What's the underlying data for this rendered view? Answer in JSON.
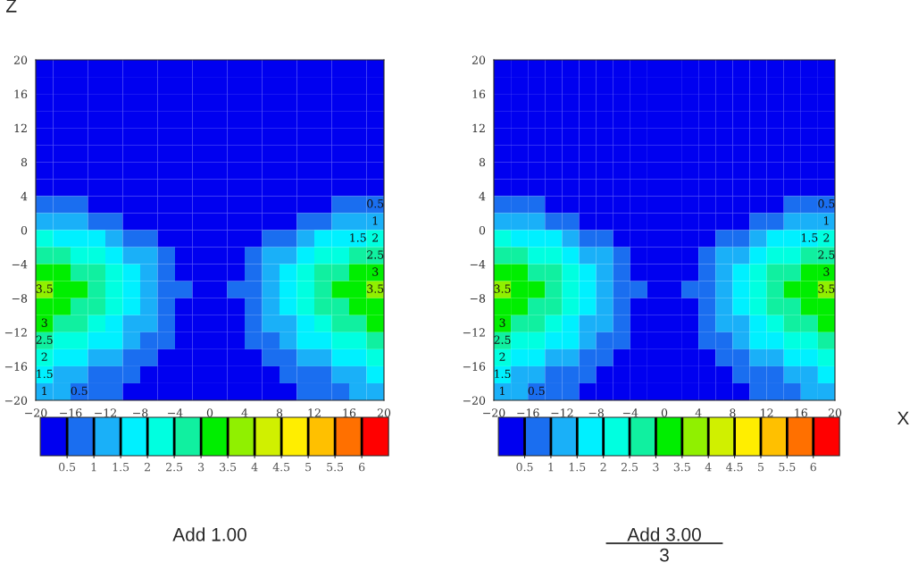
{
  "chart_data": [
    {
      "type": "heatmap",
      "title": "Add 1.00",
      "ylabel": "Z",
      "x": [
        -19,
        -17,
        -15,
        -13,
        -11,
        -9,
        -7,
        -5,
        -3,
        -1,
        1,
        3,
        5,
        7,
        9,
        11,
        13,
        15,
        17,
        19
      ],
      "y": [
        19,
        17,
        15,
        13,
        11,
        9,
        7,
        5,
        3,
        1,
        -1,
        -3,
        -5,
        -7,
        -9,
        -11,
        -13,
        -15,
        -17,
        -19
      ],
      "xlim": [
        -20,
        20
      ],
      "xticks": [
        -20,
        -16,
        -12,
        -8,
        -4,
        0,
        4,
        8,
        12,
        16,
        20
      ],
      "ylim": [
        -20,
        20
      ],
      "yticks": [
        -20,
        -16,
        -12,
        -8,
        -4,
        0,
        4,
        8,
        12,
        16,
        20
      ],
      "clim": [
        0,
        6.5
      ],
      "cticks": [
        0.5,
        1,
        1.5,
        2,
        2.5,
        3,
        3.5,
        4,
        4.5,
        5,
        5.5,
        6
      ],
      "colors": [
        "#0000f0",
        "#1a6ef0",
        "#1ab0f8",
        "#00f0ff",
        "#00ffe0",
        "#10f0a0",
        "#00ee00",
        "#90f000",
        "#d0f000",
        "#ffee00",
        "#ffc000",
        "#ff7000",
        "#ff0000"
      ],
      "cells": [
        [
          0,
          0,
          0,
          0,
          0,
          0,
          0,
          0,
          0,
          0,
          0,
          0,
          0,
          0,
          0,
          0,
          0,
          0,
          0,
          0
        ],
        [
          0,
          0,
          0,
          0,
          0,
          0,
          0,
          0,
          0,
          0,
          0,
          0,
          0,
          0,
          0,
          0,
          0,
          0,
          0,
          0
        ],
        [
          0,
          0,
          0,
          0,
          0,
          0,
          0,
          0,
          0,
          0,
          0,
          0,
          0,
          0,
          0,
          0,
          0,
          0,
          0,
          0
        ],
        [
          0,
          0,
          0,
          0,
          0,
          0,
          0,
          0,
          0,
          0,
          0,
          0,
          0,
          0,
          0,
          0,
          0,
          0,
          0,
          0
        ],
        [
          0,
          0,
          0,
          0,
          0,
          0,
          0,
          0,
          0,
          0,
          0,
          0,
          0,
          0,
          0,
          0,
          0,
          0,
          0,
          0
        ],
        [
          0,
          0,
          0,
          0,
          0,
          0,
          0,
          0,
          0,
          0,
          0,
          0,
          0,
          0,
          0,
          0,
          0,
          0,
          0,
          0
        ],
        [
          0,
          0,
          0,
          0,
          0,
          0,
          0,
          0,
          0,
          0,
          0,
          0,
          0,
          0,
          0,
          0,
          0,
          0,
          0,
          0
        ],
        [
          0,
          0,
          0,
          0,
          0,
          0,
          0,
          0,
          0,
          0,
          0,
          0,
          0,
          0,
          0,
          0,
          0,
          0,
          0,
          0
        ],
        [
          0.5,
          0.5,
          0.5,
          0,
          0,
          0,
          0,
          0,
          0,
          0,
          0,
          0,
          0,
          0,
          0,
          0,
          0,
          0.5,
          0.5,
          0.5
        ],
        [
          1,
          1,
          1,
          0.5,
          0.5,
          0,
          0,
          0,
          0,
          0,
          0,
          0,
          0,
          0,
          0,
          0.5,
          0.5,
          1,
          1,
          1
        ],
        [
          2,
          1.5,
          1.5,
          1.5,
          1,
          0.5,
          0.5,
          0,
          0,
          0,
          0,
          0,
          0,
          0.5,
          0.5,
          1,
          1.5,
          1.5,
          1.5,
          2
        ],
        [
          2.5,
          2.5,
          2,
          2,
          1.5,
          1,
          1,
          0.5,
          0,
          0,
          0,
          0,
          0.5,
          1,
          1,
          1.5,
          2,
          2,
          2.5,
          2.5
        ],
        [
          3,
          3,
          2.5,
          2.5,
          2,
          1.5,
          1,
          0.5,
          0,
          0,
          0,
          0,
          0.5,
          1,
          1.5,
          2,
          2.5,
          2.5,
          3,
          3
        ],
        [
          3.5,
          3,
          3,
          2.5,
          2,
          1.5,
          1,
          0.5,
          0.5,
          0,
          0,
          0.5,
          0.5,
          1,
          1.5,
          2,
          2.5,
          3,
          3,
          3.5
        ],
        [
          3,
          3,
          2.5,
          2.5,
          2,
          1.5,
          1,
          0.5,
          0,
          0,
          0,
          0,
          0.5,
          1,
          1.5,
          2,
          2.5,
          2.5,
          3,
          3
        ],
        [
          3,
          2.5,
          2.5,
          2,
          1.5,
          1,
          1,
          0.5,
          0,
          0,
          0,
          0,
          0.5,
          1,
          1,
          1.5,
          2,
          2.5,
          2.5,
          3
        ],
        [
          2.5,
          2,
          2,
          1.5,
          1.5,
          1,
          0.5,
          0.5,
          0,
          0,
          0,
          0,
          0.5,
          0.5,
          1,
          1.5,
          1.5,
          2,
          2,
          2.5
        ],
        [
          2,
          1.5,
          1.5,
          1,
          1,
          0.5,
          0.5,
          0,
          0,
          0,
          0,
          0,
          0,
          0.5,
          0.5,
          1,
          1,
          1.5,
          1.5,
          2
        ],
        [
          1.5,
          1,
          1,
          0.5,
          0.5,
          0.5,
          0,
          0,
          0,
          0,
          0,
          0,
          0,
          0,
          0.5,
          0.5,
          0.5,
          1,
          1,
          1.5
        ],
        [
          1,
          1,
          0.5,
          0.5,
          0.5,
          0,
          0,
          0,
          0,
          0,
          0,
          0,
          0,
          0,
          0,
          0.5,
          0.5,
          0.5,
          1,
          1
        ]
      ],
      "annotations": [
        "0.5",
        "1",
        "1.5",
        "2",
        "2.5",
        "3",
        "3.5",
        "0.5",
        "1",
        "1.5",
        "2",
        "2.5",
        "3",
        "3.5"
      ]
    },
    {
      "type": "heatmap",
      "title": "Add 3.00",
      "subtitle": "3",
      "xlabel": "X",
      "x": [
        -19,
        -17,
        -15,
        -13,
        -11,
        -9,
        -7,
        -5,
        -3,
        -1,
        1,
        3,
        5,
        7,
        9,
        11,
        13,
        15,
        17,
        19
      ],
      "y": [
        19,
        17,
        15,
        13,
        11,
        9,
        7,
        5,
        3,
        1,
        -1,
        -3,
        -5,
        -7,
        -9,
        -11,
        -13,
        -15,
        -17,
        -19
      ],
      "xlim": [
        -20,
        20
      ],
      "xticks": [
        -20,
        -16,
        -12,
        -8,
        -4,
        0,
        4,
        8,
        12,
        16,
        20
      ],
      "ylim": [
        -20,
        20
      ],
      "yticks": [
        -20,
        -16,
        -12,
        -8,
        -4,
        0,
        4,
        8,
        12,
        16,
        20
      ],
      "clim": [
        0,
        6.5
      ],
      "cticks": [
        0.5,
        1,
        1.5,
        2,
        2.5,
        3,
        3.5,
        4,
        4.5,
        5,
        5.5,
        6
      ],
      "colors": [
        "#0000f0",
        "#1a6ef0",
        "#1ab0f8",
        "#00f0ff",
        "#00ffe0",
        "#10f0a0",
        "#00ee00",
        "#90f000",
        "#d0f000",
        "#ffee00",
        "#ffc000",
        "#ff7000",
        "#ff0000"
      ],
      "cells": [
        [
          0,
          0,
          0,
          0,
          0,
          0,
          0,
          0,
          0,
          0,
          0,
          0,
          0,
          0,
          0,
          0,
          0,
          0,
          0,
          0
        ],
        [
          0,
          0,
          0,
          0,
          0,
          0,
          0,
          0,
          0,
          0,
          0,
          0,
          0,
          0,
          0,
          0,
          0,
          0,
          0,
          0
        ],
        [
          0,
          0,
          0,
          0,
          0,
          0,
          0,
          0,
          0,
          0,
          0,
          0,
          0,
          0,
          0,
          0,
          0,
          0,
          0,
          0
        ],
        [
          0,
          0,
          0,
          0,
          0,
          0,
          0,
          0,
          0,
          0,
          0,
          0,
          0,
          0,
          0,
          0,
          0,
          0,
          0,
          0
        ],
        [
          0,
          0,
          0,
          0,
          0,
          0,
          0,
          0,
          0,
          0,
          0,
          0,
          0,
          0,
          0,
          0,
          0,
          0,
          0,
          0
        ],
        [
          0,
          0,
          0,
          0,
          0,
          0,
          0,
          0,
          0,
          0,
          0,
          0,
          0,
          0,
          0,
          0,
          0,
          0,
          0,
          0
        ],
        [
          0,
          0,
          0,
          0,
          0,
          0,
          0,
          0,
          0,
          0,
          0,
          0,
          0,
          0,
          0,
          0,
          0,
          0,
          0,
          0
        ],
        [
          0,
          0,
          0,
          0,
          0,
          0,
          0,
          0,
          0,
          0,
          0,
          0,
          0,
          0,
          0,
          0,
          0,
          0,
          0,
          0
        ],
        [
          0.5,
          0.5,
          0.5,
          0,
          0,
          0,
          0,
          0,
          0,
          0,
          0,
          0,
          0,
          0,
          0,
          0,
          0,
          0.5,
          0.5,
          0.5
        ],
        [
          1,
          1,
          1,
          0.5,
          0.5,
          0,
          0,
          0,
          0,
          0,
          0,
          0,
          0,
          0,
          0,
          0.5,
          0.5,
          1,
          1,
          1
        ],
        [
          2,
          1.5,
          1.5,
          1.5,
          1,
          0.5,
          0.5,
          0,
          0,
          0,
          0,
          0,
          0,
          0.5,
          0.5,
          1,
          1.5,
          1.5,
          1.5,
          2
        ],
        [
          2.5,
          2.5,
          2,
          2,
          1.5,
          1,
          1,
          0.5,
          0,
          0,
          0,
          0,
          0.5,
          1,
          1,
          1.5,
          2,
          2,
          2.5,
          2.5
        ],
        [
          3,
          3,
          2.5,
          2.5,
          2,
          1.5,
          1,
          0.5,
          0,
          0,
          0,
          0,
          0.5,
          1,
          1.5,
          2,
          2.5,
          2.5,
          3,
          3
        ],
        [
          3.5,
          3,
          3,
          2.5,
          2,
          1.5,
          1,
          0.5,
          0.5,
          0,
          0,
          0.5,
          0.5,
          1,
          1.5,
          2,
          2.5,
          3,
          3,
          3.5
        ],
        [
          3,
          3,
          2.5,
          2.5,
          2,
          1.5,
          1,
          0.5,
          0,
          0,
          0,
          0,
          0.5,
          1,
          1.5,
          2,
          2.5,
          2.5,
          3,
          3
        ],
        [
          3,
          2.5,
          2.5,
          2,
          1.5,
          1,
          1,
          0.5,
          0,
          0,
          0,
          0,
          0.5,
          1,
          1,
          1.5,
          2,
          2.5,
          2.5,
          3
        ],
        [
          2.5,
          2,
          2,
          1.5,
          1.5,
          1,
          0.5,
          0.5,
          0,
          0,
          0,
          0,
          0.5,
          0.5,
          1,
          1.5,
          1.5,
          2,
          2,
          2.5
        ],
        [
          2,
          1.5,
          1.5,
          1,
          1,
          0.5,
          0.5,
          0,
          0,
          0,
          0,
          0,
          0,
          0.5,
          0.5,
          1,
          1,
          1.5,
          1.5,
          2
        ],
        [
          1.5,
          1,
          1,
          0.5,
          0.5,
          0.5,
          0,
          0,
          0,
          0,
          0,
          0,
          0,
          0,
          0.5,
          0.5,
          0.5,
          1,
          1,
          1.5
        ],
        [
          1,
          1,
          0.5,
          0.5,
          0.5,
          0,
          0,
          0,
          0,
          0,
          0,
          0,
          0,
          0,
          0,
          0.5,
          0.5,
          0.5,
          1,
          1
        ]
      ],
      "annotations": [
        "0.5",
        "1",
        "1.5",
        "2",
        "2.5",
        "3",
        "3.5",
        "0.5",
        "1",
        "1.5",
        "2",
        "2.5",
        "3",
        "3.5"
      ]
    }
  ]
}
